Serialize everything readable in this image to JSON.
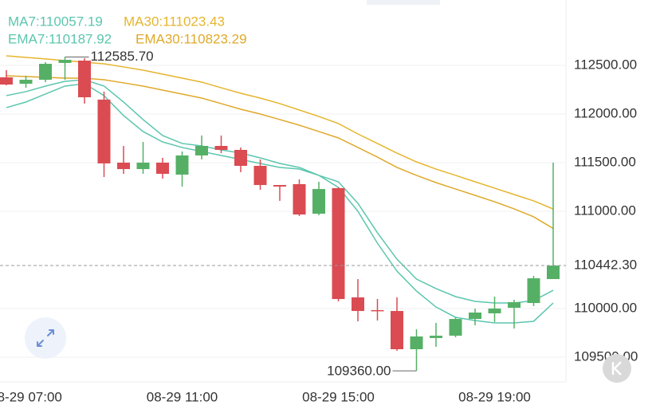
{
  "chart_data": {
    "type": "candlestick",
    "categories": [
      null,
      "08-29 07:00",
      null,
      null,
      null,
      null,
      null,
      null,
      null,
      "08-29 11:00",
      null,
      null,
      null,
      null,
      null,
      null,
      null,
      "08-29 15:00",
      null,
      null,
      null,
      null,
      null,
      null,
      null,
      "08-29 19:00",
      null,
      null,
      null
    ],
    "open": [
      112377,
      112311,
      112352,
      112525,
      112549,
      112148,
      111500,
      111434,
      111500,
      111377,
      111574,
      111672,
      111631,
      111467,
      111270,
      111279,
      110975,
      111238,
      110115,
      109984,
      109975,
      109582,
      109697,
      109721,
      109893,
      109951,
      110008,
      110057,
      110303
    ],
    "high": [
      112451,
      112393,
      112533,
      112585.7,
      112574,
      112230,
      111672,
      111713,
      111549,
      111615,
      111779,
      111779,
      111656,
      111533,
      111270,
      111328,
      111303,
      111246,
      110303,
      110098,
      110115,
      109787,
      109852,
      109910,
      110000,
      110123,
      110090,
      110336,
      111500
    ],
    "low": [
      112295,
      112270,
      112328,
      112352,
      112107,
      111352,
      111385,
      111385,
      111336,
      111254,
      111533,
      111598,
      111402,
      111221,
      111107,
      110951,
      110959,
      110074,
      109869,
      109877,
      109566,
      109360,
      109606,
      109705,
      109828,
      109861,
      109795,
      110025,
      110303
    ],
    "close": [
      112303,
      112352,
      112516,
      112557,
      112172,
      111492,
      111434,
      111500,
      111385,
      111574,
      111672,
      111631,
      111467,
      111270,
      111254,
      110967,
      111229,
      110098,
      109975,
      109975,
      109582,
      109713,
      109721,
      109893,
      109959,
      110000,
      110066,
      110311,
      110442.3
    ],
    "up_color": "#55b066",
    "down_color": "#db4b52",
    "series": [
      {
        "name": "MA7:110057.19",
        "color": "#5cc6ae",
        "values": [
          112066,
          112123,
          112205,
          112287,
          112311,
          112189,
          111984,
          111820,
          111713,
          111656,
          111615,
          111574,
          111533,
          111492,
          111451,
          111434,
          111369,
          111246,
          111000,
          110672,
          110385,
          110180,
          110016,
          109910,
          109877,
          109852,
          109852,
          109869,
          110057.19
        ]
      },
      {
        "name": "MA30:111023.43",
        "color": "#e6b52e",
        "values": [
          112598,
          112582,
          112566,
          112549,
          112533,
          112516,
          112484,
          112451,
          112410,
          112369,
          112328,
          112270,
          112213,
          112164,
          112107,
          112041,
          111975,
          111902,
          111795,
          111697,
          111598,
          111508,
          111434,
          111369,
          111303,
          111238,
          111172,
          111107,
          111023.43
        ]
      },
      {
        "name": "EMA7:110187.92",
        "color": "#5cc6ae",
        "values": [
          112189,
          112230,
          112287,
          112336,
          112352,
          112287,
          112123,
          111943,
          111779,
          111697,
          111672,
          111631,
          111598,
          111549,
          111492,
          111451,
          111369,
          111303,
          111082,
          110779,
          110508,
          110303,
          110205,
          110123,
          110074,
          110057,
          110057,
          110082,
          110187.92
        ]
      },
      {
        "name": "EMA30:110823.29",
        "color": "#e0a92a",
        "values": [
          112393,
          112385,
          112377,
          112369,
          112369,
          112352,
          112320,
          112287,
          112246,
          112205,
          112164,
          112107,
          112049,
          112000,
          111943,
          111885,
          111820,
          111754,
          111656,
          111557,
          111451,
          111369,
          111295,
          111229,
          111164,
          111098,
          111025,
          110943,
          110823.29
        ]
      }
    ],
    "ylim": [
      109254,
      113172
    ],
    "yticks": [
      {
        "value": 109500,
        "label": "109500.00"
      },
      {
        "value": 110000,
        "label": "110000.00"
      },
      {
        "value": 111000,
        "label": "111000.00"
      },
      {
        "value": 111500,
        "label": "111500.00"
      },
      {
        "value": 112000,
        "label": "112000.00"
      },
      {
        "value": 112500,
        "label": "112500.00"
      }
    ],
    "last_price": {
      "value": 110442.3,
      "label": "110442.30"
    },
    "annotations": [
      {
        "index": 3,
        "value": 112585.7,
        "label": "112585.70"
      },
      {
        "index": 21,
        "value": 109360,
        "label": "109360.00"
      }
    ],
    "grid": true
  }
}
